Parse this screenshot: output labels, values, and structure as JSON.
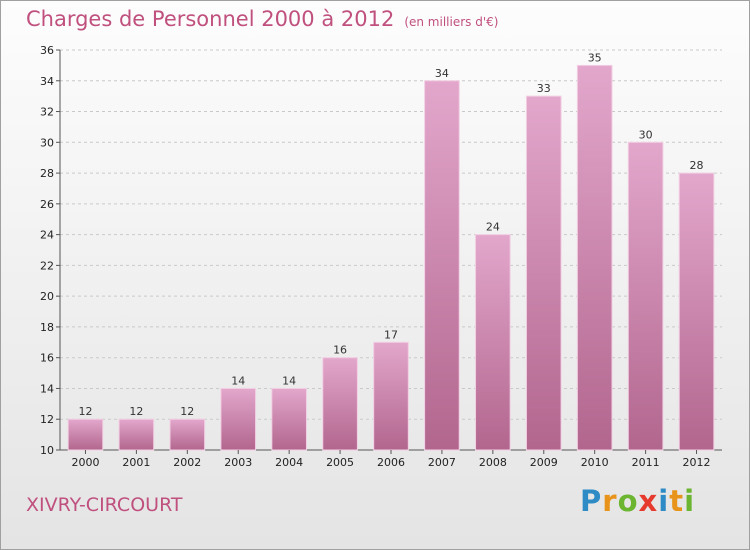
{
  "header": {
    "title": "Charges de Personnel 2000 à 2012",
    "unit": "(en milliers d'€)"
  },
  "footer": {
    "place": "XIVRY-CIRCOURT",
    "logo_letters": [
      {
        "ch": "P",
        "color": "#2e8bc6"
      },
      {
        "ch": "r",
        "color": "#e8941a"
      },
      {
        "ch": "o",
        "color": "#6bb531"
      },
      {
        "ch": "x",
        "color": "#e63a2e"
      },
      {
        "ch": "i",
        "color": "#2e8bc6"
      },
      {
        "ch": "t",
        "color": "#e8941a"
      },
      {
        "ch": "i",
        "color": "#6bb531"
      }
    ]
  },
  "colors": {
    "bar_light": "#e3a7cc",
    "bar_dark": "#b2668e",
    "bar_edge": "#f2cfe3",
    "grid": "#c9c9c9",
    "axis": "#555555"
  },
  "chart_data": {
    "type": "bar",
    "title": "Charges de Personnel 2000 à 2012",
    "subtitle": "(en milliers d'€)",
    "categories": [
      "2000",
      "2001",
      "2002",
      "2003",
      "2004",
      "2005",
      "2006",
      "2007",
      "2008",
      "2009",
      "2010",
      "2011",
      "2012"
    ],
    "values": [
      12,
      12,
      12,
      14,
      14,
      16,
      17,
      34,
      24,
      33,
      35,
      30,
      28
    ],
    "ylim": [
      10,
      36
    ],
    "yticks": [
      10,
      12,
      14,
      16,
      18,
      20,
      22,
      24,
      26,
      28,
      30,
      32,
      34,
      36
    ],
    "grid": true,
    "legend": "none",
    "xlabel": "",
    "ylabel": ""
  }
}
